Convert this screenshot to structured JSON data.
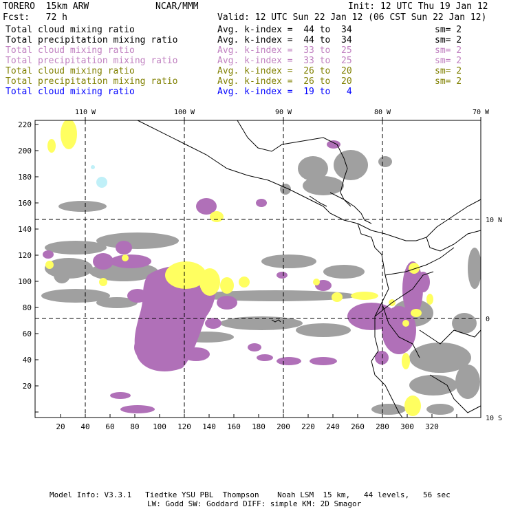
{
  "header": {
    "model": "TORERO  15km ARW",
    "org": "NCAR/MMM",
    "init": "Init: 12 UTC Thu 19 Jan 12",
    "fcst": "Fcst:   72 h",
    "valid": "Valid: 12 UTC Sun 22 Jan 12 (06 CST Sun 22 Jan 12)"
  },
  "legend": [
    {
      "field": "Total cloud mixing ratio",
      "avg": "Avg. k-index =  44 to  34",
      "sm": "sm= 2",
      "color": "#000000"
    },
    {
      "field": "Total precipitation mixing ratio",
      "avg": "Avg. k-index =  44 to  34",
      "sm": "sm= 2",
      "color": "#000000"
    },
    {
      "field": "Total cloud mixing ratio",
      "avg": "Avg. k-index =  33 to  25",
      "sm": "sm= 2",
      "color": "#c080c0"
    },
    {
      "field": "Total precipitation mixing ratio",
      "avg": "Avg. k-index =  33 to  25",
      "sm": "sm= 2",
      "color": "#c080c0"
    },
    {
      "field": "Total cloud mixing ratio",
      "avg": "Avg. k-index =  26 to  20",
      "sm": "sm= 2",
      "color": "#808000"
    },
    {
      "field": "Total precipitation mixing ratio",
      "avg": "Avg. k-index =  26 to  20",
      "sm": "sm= 2",
      "color": "#808000"
    },
    {
      "field": "Total cloud mixing ratio",
      "avg": "Avg. k-index =  19 to   4",
      "sm": "",
      "color": "#0000ff"
    }
  ],
  "map": {
    "top_axis": [
      "110 W",
      "100 W",
      "90 W",
      "80 W",
      "70 W"
    ],
    "right_axis": [
      "10 N",
      "0",
      "10 S"
    ],
    "x_ticks": [
      "20",
      "40",
      "60",
      "80",
      "100",
      "120",
      "140",
      "160",
      "180",
      "200",
      "220",
      "240",
      "260",
      "280",
      "300",
      "320"
    ],
    "y_ticks": [
      "220",
      "200",
      "180",
      "160",
      "140",
      "120",
      "100",
      "80",
      "60",
      "40",
      "20"
    ],
    "colors": {
      "gray": "#a0a0a0",
      "purple": "#b070b8",
      "yellow": "#ffff60",
      "lightblue": "#c0f0f8"
    }
  },
  "footer": {
    "line1": "Model Info: V3.3.1   Tiedtke YSU PBL  Thompson    Noah LSM  15 km,   44 levels,   56 sec",
    "line2": "LW: Godd SW: Goddard DIFF: simple KM: 2D Smagor"
  }
}
